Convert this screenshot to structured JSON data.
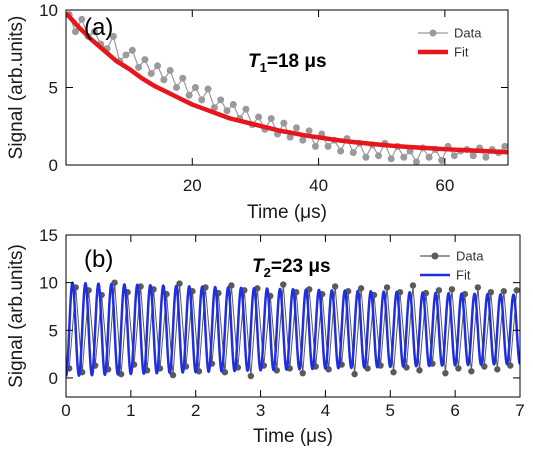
{
  "chart_data": [
    {
      "type": "scatter",
      "panel_label": "(a)",
      "annotation": {
        "symbol": "T",
        "subscript": "1",
        "value": "=18 μs"
      },
      "xlabel": "Time (μs)",
      "ylabel": "Signal (arb.units)",
      "xlim": [
        0,
        70
      ],
      "ylim": [
        0,
        10
      ],
      "xticks": [
        20,
        40,
        60
      ],
      "yticks": [
        0,
        5,
        10
      ],
      "legend_position": "top-right",
      "series": [
        {
          "name": "Data",
          "kind": "points-with-line",
          "color": "#9a9a9a",
          "x": [
            0.5,
            1.5,
            2.5,
            3.5,
            4.5,
            5.5,
            6.5,
            7.5,
            8.5,
            9.5,
            10.5,
            11.5,
            12.5,
            13.5,
            14.5,
            15.5,
            16.5,
            17.5,
            18.5,
            19.5,
            20.5,
            21.5,
            22.5,
            23.5,
            24.5,
            25.5,
            26.5,
            27.5,
            28.5,
            29.5,
            30.5,
            31.5,
            32.5,
            33.5,
            34.5,
            35.5,
            36.5,
            37.5,
            38.5,
            39.5,
            40.5,
            41.5,
            42.5,
            43.5,
            44.5,
            45.5,
            46.5,
            47.5,
            48.5,
            49.5,
            50.5,
            51.5,
            52.5,
            53.5,
            54.5,
            55.5,
            56.5,
            57.5,
            58.5,
            59.5,
            60.5,
            61.5,
            62.5,
            63.5,
            64.5,
            65.5,
            66.5,
            67.5,
            68.5,
            69.5
          ],
          "y": [
            9.7,
            8.6,
            9.4,
            8.3,
            8.6,
            7.8,
            7.5,
            8.3,
            6.7,
            7.1,
            7.4,
            6.3,
            6.8,
            5.9,
            6.4,
            5.5,
            6.1,
            5.0,
            5.6,
            4.5,
            5.0,
            4.2,
            4.9,
            3.7,
            4.2,
            3.5,
            3.9,
            3.0,
            3.6,
            2.6,
            3.1,
            2.3,
            3.0,
            2.0,
            2.7,
            1.8,
            2.4,
            1.6,
            2.2,
            1.2,
            2.0,
            1.2,
            1.6,
            0.9,
            1.7,
            0.8,
            1.4,
            0.5,
            1.3,
            0.6,
            1.4,
            0.4,
            1.2,
            0.5,
            0.9,
            0.2,
            1.1,
            0.5,
            1.0,
            0.3,
            1.2,
            0.6,
            0.9,
            1.0,
            0.6,
            1.1,
            0.5,
            1.0,
            0.8,
            1.2
          ]
        },
        {
          "name": "Fit",
          "kind": "line",
          "color": "#e8151b",
          "x": [
            0,
            2,
            4,
            6,
            8,
            10,
            12,
            14,
            16,
            18,
            20,
            22,
            24,
            26,
            28,
            30,
            32,
            34,
            36,
            38,
            40,
            42,
            44,
            46,
            48,
            50,
            52,
            54,
            56,
            58,
            60,
            62,
            64,
            66,
            68,
            70
          ],
          "y": [
            9.8,
            8.9,
            8.1,
            7.4,
            6.7,
            6.2,
            5.6,
            5.1,
            4.7,
            4.3,
            3.9,
            3.6,
            3.3,
            3.0,
            2.8,
            2.6,
            2.4,
            2.2,
            2.05,
            1.9,
            1.78,
            1.66,
            1.55,
            1.46,
            1.38,
            1.3,
            1.23,
            1.17,
            1.12,
            1.07,
            1.02,
            0.98,
            0.94,
            0.9,
            0.86,
            0.82
          ]
        }
      ]
    },
    {
      "type": "scatter",
      "panel_label": "(b)",
      "annotation": {
        "symbol": "T",
        "subscript": "2",
        "value": "=23 μs"
      },
      "xlabel": "Time (μs)",
      "ylabel": "Signal (arb.units)",
      "xlim": [
        0,
        7
      ],
      "ylim": [
        -2,
        15
      ],
      "xticks": [
        0,
        1,
        2,
        3,
        4,
        5,
        6,
        7
      ],
      "yticks": [
        0,
        5,
        10,
        15
      ],
      "legend_position": "top-right",
      "oscillation_frequency_MHz": 5.0,
      "decay_time_us": 23,
      "amplitude": 4.9,
      "offset": 5.1,
      "series": [
        {
          "name": "Data",
          "kind": "points-with-line",
          "color": "#5a5a5a",
          "x": [
            0.05,
            0.15,
            0.25,
            0.35,
            0.45,
            0.55,
            0.65,
            0.75,
            0.85,
            0.95,
            1.05,
            1.15,
            1.25,
            1.35,
            1.45,
            1.55,
            1.65,
            1.75,
            1.85,
            1.95,
            2.05,
            2.15,
            2.25,
            2.35,
            2.45,
            2.55,
            2.65,
            2.75,
            2.85,
            2.95,
            3.05,
            3.15,
            3.25,
            3.35,
            3.45,
            3.55,
            3.65,
            3.75,
            3.85,
            3.95,
            4.05,
            4.15,
            4.25,
            4.35,
            4.45,
            4.55,
            4.65,
            4.75,
            4.85,
            4.95,
            5.05,
            5.15,
            5.25,
            5.35,
            5.45,
            5.55,
            5.65,
            5.75,
            5.85,
            5.95,
            6.05,
            6.15,
            6.25,
            6.35,
            6.45,
            6.55,
            6.65,
            6.75,
            6.85,
            6.95
          ],
          "y": [
            1.0,
            9.5,
            0.6,
            9.2,
            1.3,
            8.7,
            0.9,
            10.0,
            0.4,
            9.0,
            1.4,
            9.6,
            0.8,
            9.3,
            1.0,
            8.8,
            0.3,
            9.9,
            1.2,
            9.1,
            0.7,
            9.5,
            1.5,
            8.9,
            0.6,
            9.7,
            1.1,
            9.2,
            0.2,
            9.4,
            1.3,
            8.6,
            0.8,
            9.8,
            1.0,
            9.0,
            0.5,
            9.3,
            1.2,
            8.8,
            0.9,
            9.6,
            1.4,
            9.1,
            0.4,
            9.4,
            1.0,
            8.7,
            1.3,
            9.5,
            0.6,
            9.0,
            1.1,
            9.7,
            0.8,
            8.9,
            1.5,
            9.2,
            0.5,
            9.3,
            1.0,
            8.8,
            0.7,
            9.5,
            1.2,
            9.0,
            0.9,
            9.1,
            1.3,
            9.2
          ]
        },
        {
          "name": "Fit",
          "kind": "line",
          "color": "#1e2ee0"
        }
      ]
    }
  ]
}
